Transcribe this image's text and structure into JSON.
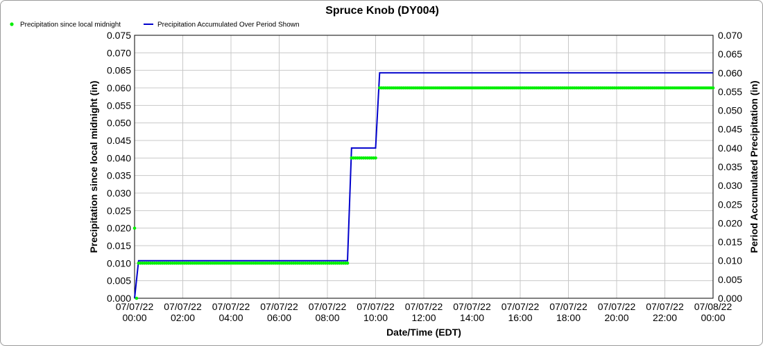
{
  "chart_data": {
    "type": "line",
    "title": "Spruce Knob (DY004)",
    "xlabel": "Date/Time (EDT)",
    "ylabel_left": "Precipitation since local midnight (in)",
    "ylabel_right": "Period Accumulated Precipitation (in)",
    "ylim_left": [
      0,
      0.075
    ],
    "ylim_right": [
      0,
      0.07
    ],
    "xlim_hours": [
      0,
      24
    ],
    "grid": true,
    "legend_placement": "top-left",
    "x_ticks": [
      {
        "date": "07/07/22",
        "time": "00:00"
      },
      {
        "date": "07/07/22",
        "time": "02:00"
      },
      {
        "date": "07/07/22",
        "time": "04:00"
      },
      {
        "date": "07/07/22",
        "time": "06:00"
      },
      {
        "date": "07/07/22",
        "time": "08:00"
      },
      {
        "date": "07/07/22",
        "time": "10:00"
      },
      {
        "date": "07/07/22",
        "time": "12:00"
      },
      {
        "date": "07/07/22",
        "time": "14:00"
      },
      {
        "date": "07/07/22",
        "time": "16:00"
      },
      {
        "date": "07/07/22",
        "time": "18:00"
      },
      {
        "date": "07/07/22",
        "time": "20:00"
      },
      {
        "date": "07/07/22",
        "time": "22:00"
      },
      {
        "date": "07/08/22",
        "time": "00:00"
      }
    ],
    "y_ticks_left": [
      "0.000",
      "0.005",
      "0.010",
      "0.015",
      "0.020",
      "0.025",
      "0.030",
      "0.035",
      "0.040",
      "0.045",
      "0.050",
      "0.055",
      "0.060",
      "0.065",
      "0.070",
      "0.075"
    ],
    "y_ticks_right": [
      "0.000",
      "0.005",
      "0.010",
      "0.015",
      "0.020",
      "0.025",
      "0.030",
      "0.035",
      "0.040",
      "0.045",
      "0.050",
      "0.055",
      "0.060",
      "0.065",
      "0.070"
    ],
    "series": [
      {
        "name": "Precipitation since local midnight",
        "axis": "left",
        "style": "points",
        "color": "#00ee00",
        "points": [
          {
            "x": "07/07/22 00:00",
            "y": 0.02
          },
          {
            "x": "07/07/22 00:05",
            "y": 0.0
          },
          {
            "x": "07/07/22 00:10 – 07/07/22 08:50",
            "y": 0.01
          },
          {
            "x": "07/07/22 09:00 – 07/07/22 10:00",
            "y": 0.04
          },
          {
            "x": "07/07/22 10:10 – 07/08/22 00:00",
            "y": 0.06
          }
        ]
      },
      {
        "name": "Precipitation Accumulated Over Period Shown",
        "axis": "right",
        "style": "step-line",
        "color": "#0000cc",
        "points": [
          {
            "x": "07/07/22 00:00",
            "y": 0.0
          },
          {
            "x": "07/07/22 00:10",
            "y": 0.01
          },
          {
            "x": "07/07/22 08:50",
            "y": 0.01
          },
          {
            "x": "07/07/22 09:00",
            "y": 0.04
          },
          {
            "x": "07/07/22 10:00",
            "y": 0.04
          },
          {
            "x": "07/07/22 10:10",
            "y": 0.06
          },
          {
            "x": "07/08/22 00:00",
            "y": 0.06
          }
        ]
      }
    ]
  }
}
